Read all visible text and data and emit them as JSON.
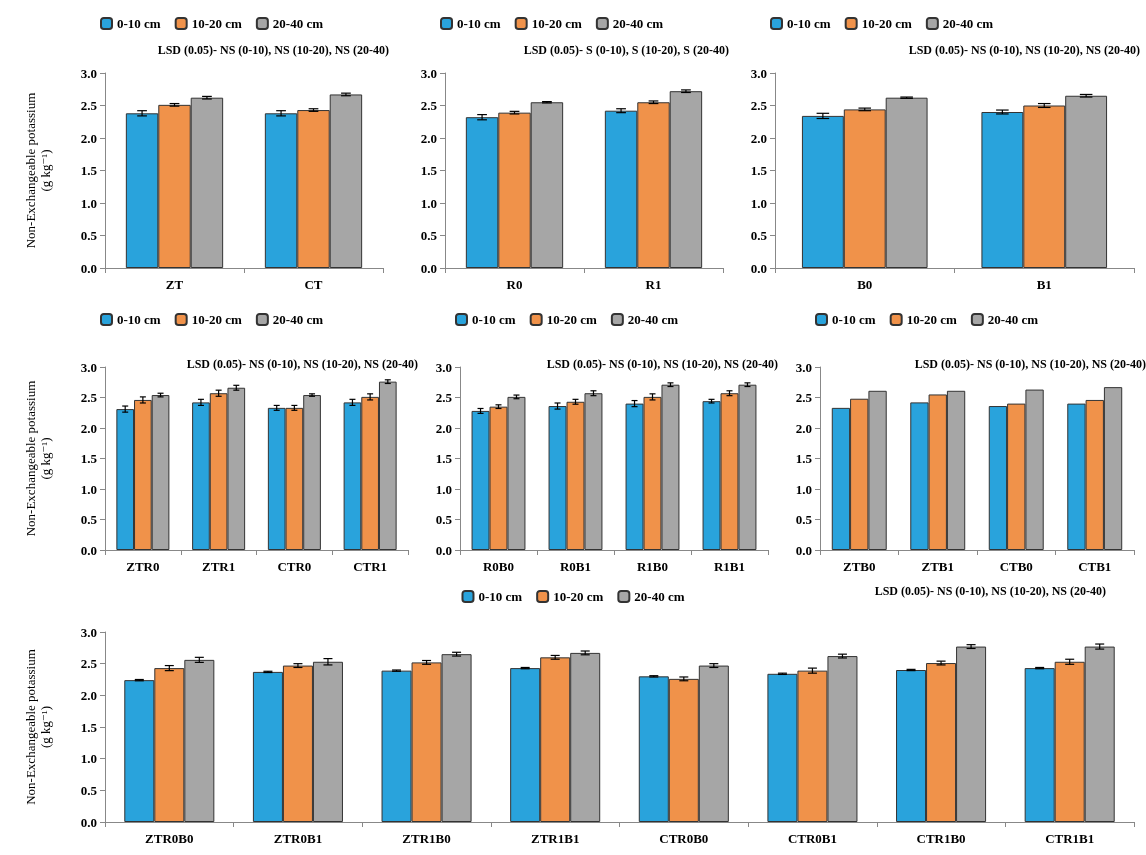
{
  "chart_data": [
    {
      "type": "bar",
      "ylabel": "Non-Exchangeable potassium\n(g kg⁻¹)",
      "categories": [
        "ZT",
        "CT"
      ],
      "legend": "top",
      "annotations": [
        "LSD (0.05)- NS (0-10), NS (10-20), NS (20-40)"
      ],
      "ylim": [
        0,
        3
      ],
      "yticks": [
        {
          "value": 0,
          "label": "0.0"
        },
        {
          "value": 0.5,
          "label": "0.5"
        },
        {
          "value": 1,
          "label": "1.0"
        },
        {
          "value": 1.5,
          "label": "1.5"
        },
        {
          "value": 2,
          "label": "2.0"
        },
        {
          "value": 2.5,
          "label": "2.5"
        },
        {
          "value": 3,
          "label": "3.0"
        }
      ],
      "series": [
        {
          "name": "0-10 cm",
          "color": "#29a3dc",
          "values": [
            2.38,
            2.38
          ],
          "errors": [
            0.04,
            0.04
          ]
        },
        {
          "name": "10-20 cm",
          "color": "#f0924a",
          "values": [
            2.51,
            2.43
          ],
          "errors": [
            0.02,
            0.02
          ]
        },
        {
          "name": "20-40 cm",
          "color": "#a6a6a6",
          "values": [
            2.62,
            2.67
          ],
          "errors": [
            0.02,
            0.02
          ]
        }
      ]
    },
    {
      "type": "bar",
      "categories": [
        "R0",
        "R1"
      ],
      "legend": "top",
      "annotations": [
        "LSD (0.05)- S (0-10), S (10-20), S (20-40)"
      ],
      "ylim": [
        0,
        3
      ],
      "yticks": [
        {
          "value": 0,
          "label": "0.0"
        },
        {
          "value": 0.5,
          "label": "0.5"
        },
        {
          "value": 1,
          "label": "1.0"
        },
        {
          "value": 1.5,
          "label": "1.5"
        },
        {
          "value": 2,
          "label": "2.0"
        },
        {
          "value": 2.5,
          "label": "2.5"
        },
        {
          "value": 3,
          "label": "3.0"
        }
      ],
      "series": [
        {
          "name": "0-10 cm",
          "color": "#29a3dc",
          "values": [
            2.32,
            2.42
          ],
          "errors": [
            0.04,
            0.03
          ]
        },
        {
          "name": "10-20 cm",
          "color": "#f0924a",
          "values": [
            2.39,
            2.55
          ],
          "errors": [
            0.02,
            0.02
          ]
        },
        {
          "name": "20-40 cm",
          "color": "#a6a6a6",
          "values": [
            2.55,
            2.72
          ],
          "errors": [
            0.01,
            0.02
          ]
        }
      ]
    },
    {
      "type": "bar",
      "categories": [
        "B0",
        "B1"
      ],
      "legend": "top",
      "annotations": [
        "LSD (0.05)- NS (0-10), NS (10-20), NS (20-40)"
      ],
      "ylim": [
        0,
        3
      ],
      "yticks": [
        {
          "value": 0,
          "label": "0.0"
        },
        {
          "value": 0.5,
          "label": "0.5"
        },
        {
          "value": 1,
          "label": "1.0"
        },
        {
          "value": 1.5,
          "label": "1.5"
        },
        {
          "value": 2,
          "label": "2.0"
        },
        {
          "value": 2.5,
          "label": "2.5"
        },
        {
          "value": 3,
          "label": "3.0"
        }
      ],
      "series": [
        {
          "name": "0-10 cm",
          "color": "#29a3dc",
          "values": [
            2.34,
            2.4
          ],
          "errors": [
            0.04,
            0.03
          ]
        },
        {
          "name": "10-20 cm",
          "color": "#f0924a",
          "values": [
            2.44,
            2.5
          ],
          "errors": [
            0.02,
            0.03
          ]
        },
        {
          "name": "20-40 cm",
          "color": "#a6a6a6",
          "values": [
            2.62,
            2.65
          ],
          "errors": [
            0.01,
            0.02
          ]
        }
      ]
    },
    {
      "type": "bar",
      "ylabel": "Non-Exchangeable potassium\n(g kg⁻¹)",
      "categories": [
        "ZTR0",
        "ZTR1",
        "CTR0",
        "CTR1"
      ],
      "legend": "top",
      "annotations": [
        "LSD (0.05)- NS (0-10), NS (10-20), NS (20-40)"
      ],
      "ylim": [
        0,
        3
      ],
      "yticks": [
        {
          "value": 0,
          "label": "0.0"
        },
        {
          "value": 0.5,
          "label": "0.5"
        },
        {
          "value": 1,
          "label": "1.0"
        },
        {
          "value": 1.5,
          "label": "1.5"
        },
        {
          "value": 2,
          "label": "2.0"
        },
        {
          "value": 2.5,
          "label": "2.5"
        },
        {
          "value": 3,
          "label": "3.0"
        }
      ],
      "series": [
        {
          "name": "0-10 cm",
          "color": "#29a3dc",
          "values": [
            2.31,
            2.42,
            2.33,
            2.42
          ],
          "errors": [
            0.05,
            0.05,
            0.04,
            0.05
          ]
        },
        {
          "name": "10-20 cm",
          "color": "#f0924a",
          "values": [
            2.46,
            2.57,
            2.33,
            2.51
          ],
          "errors": [
            0.05,
            0.05,
            0.04,
            0.05
          ]
        },
        {
          "name": "20-40 cm",
          "color": "#a6a6a6",
          "values": [
            2.54,
            2.66,
            2.54,
            2.76
          ],
          "errors": [
            0.03,
            0.04,
            0.02,
            0.03
          ]
        }
      ]
    },
    {
      "type": "bar",
      "categories": [
        "R0B0",
        "R0B1",
        "R1B0",
        "R1B1"
      ],
      "legend": "top",
      "annotations": [
        "LSD (0.05)- NS (0-10), NS (10-20), NS (20-40)"
      ],
      "ylim": [
        0,
        3
      ],
      "yticks": [
        {
          "value": 0,
          "label": "0.0"
        },
        {
          "value": 0.5,
          "label": "0.5"
        },
        {
          "value": 1,
          "label": "1.0"
        },
        {
          "value": 1.5,
          "label": "1.5"
        },
        {
          "value": 2,
          "label": "2.0"
        },
        {
          "value": 2.5,
          "label": "2.5"
        },
        {
          "value": 3,
          "label": "3.0"
        }
      ],
      "series": [
        {
          "name": "0-10 cm",
          "color": "#29a3dc",
          "values": [
            2.28,
            2.36,
            2.4,
            2.44
          ],
          "errors": [
            0.04,
            0.05,
            0.05,
            0.03
          ]
        },
        {
          "name": "10-20 cm",
          "color": "#f0924a",
          "values": [
            2.35,
            2.43,
            2.51,
            2.57
          ],
          "errors": [
            0.03,
            0.04,
            0.05,
            0.04
          ]
        },
        {
          "name": "20-40 cm",
          "color": "#a6a6a6",
          "values": [
            2.51,
            2.57,
            2.71,
            2.71
          ],
          "errors": [
            0.03,
            0.04,
            0.03,
            0.03
          ]
        }
      ]
    },
    {
      "type": "bar",
      "categories": [
        "ZTB0",
        "ZTB1",
        "CTB0",
        "CTB1"
      ],
      "legend": "top",
      "annotations": [
        "LSD (0.05)- NS (0-10), NS (10-20), NS (20-40)"
      ],
      "ylim": [
        0,
        3
      ],
      "yticks": [
        {
          "value": 0,
          "label": "0.0"
        },
        {
          "value": 0.5,
          "label": "0.5"
        },
        {
          "value": 1,
          "label": "1.0"
        },
        {
          "value": 1.5,
          "label": "1.5"
        },
        {
          "value": 2,
          "label": "2.0"
        },
        {
          "value": 2.5,
          "label": "2.5"
        },
        {
          "value": 3,
          "label": "3.0"
        }
      ],
      "series": [
        {
          "name": "0-10 cm",
          "color": "#29a3dc",
          "values": [
            2.33,
            2.42,
            2.36,
            2.4
          ]
        },
        {
          "name": "10-20 cm",
          "color": "#f0924a",
          "values": [
            2.48,
            2.55,
            2.4,
            2.46
          ]
        },
        {
          "name": "20-40 cm",
          "color": "#a6a6a6",
          "values": [
            2.61,
            2.61,
            2.63,
            2.67
          ]
        }
      ]
    },
    {
      "type": "bar",
      "ylabel": "Non-Exchangeable potassium\n(g kg⁻¹)",
      "categories": [
        "ZTR0B0",
        "ZTR0B1",
        "ZTR1B0",
        "ZTR1B1",
        "CTR0B0",
        "CTR0B1",
        "CTR1B0",
        "CTR1B1"
      ],
      "legend": "top",
      "annotations": [
        "LSD (0.05)- NS (0-10), NS (10-20), NS (20-40)"
      ],
      "ylim": [
        0,
        3
      ],
      "yticks": [
        {
          "value": 0,
          "label": "0.0"
        },
        {
          "value": 0.5,
          "label": "0.5"
        },
        {
          "value": 1,
          "label": "1.0"
        },
        {
          "value": 1.5,
          "label": "1.5"
        },
        {
          "value": 2,
          "label": "2.0"
        },
        {
          "value": 2.5,
          "label": "2.5"
        },
        {
          "value": 3,
          "label": "3.0"
        }
      ],
      "series": [
        {
          "name": "0-10 cm",
          "color": "#29a3dc",
          "values": [
            2.24,
            2.37,
            2.39,
            2.43,
            2.3,
            2.34,
            2.4,
            2.43
          ],
          "errors": [
            0.01,
            0.01,
            0.01,
            0.01,
            0.01,
            0.01,
            0.01,
            0.01
          ]
        },
        {
          "name": "10-20 cm",
          "color": "#f0924a",
          "values": [
            2.43,
            2.47,
            2.52,
            2.6,
            2.26,
            2.39,
            2.51,
            2.53
          ],
          "errors": [
            0.04,
            0.03,
            0.03,
            0.03,
            0.03,
            0.04,
            0.03,
            0.04
          ]
        },
        {
          "name": "20-40 cm",
          "color": "#a6a6a6",
          "values": [
            2.56,
            2.53,
            2.65,
            2.67,
            2.47,
            2.62,
            2.77,
            2.77
          ],
          "errors": [
            0.04,
            0.05,
            0.03,
            0.03,
            0.03,
            0.03,
            0.03,
            0.04
          ]
        }
      ]
    }
  ]
}
